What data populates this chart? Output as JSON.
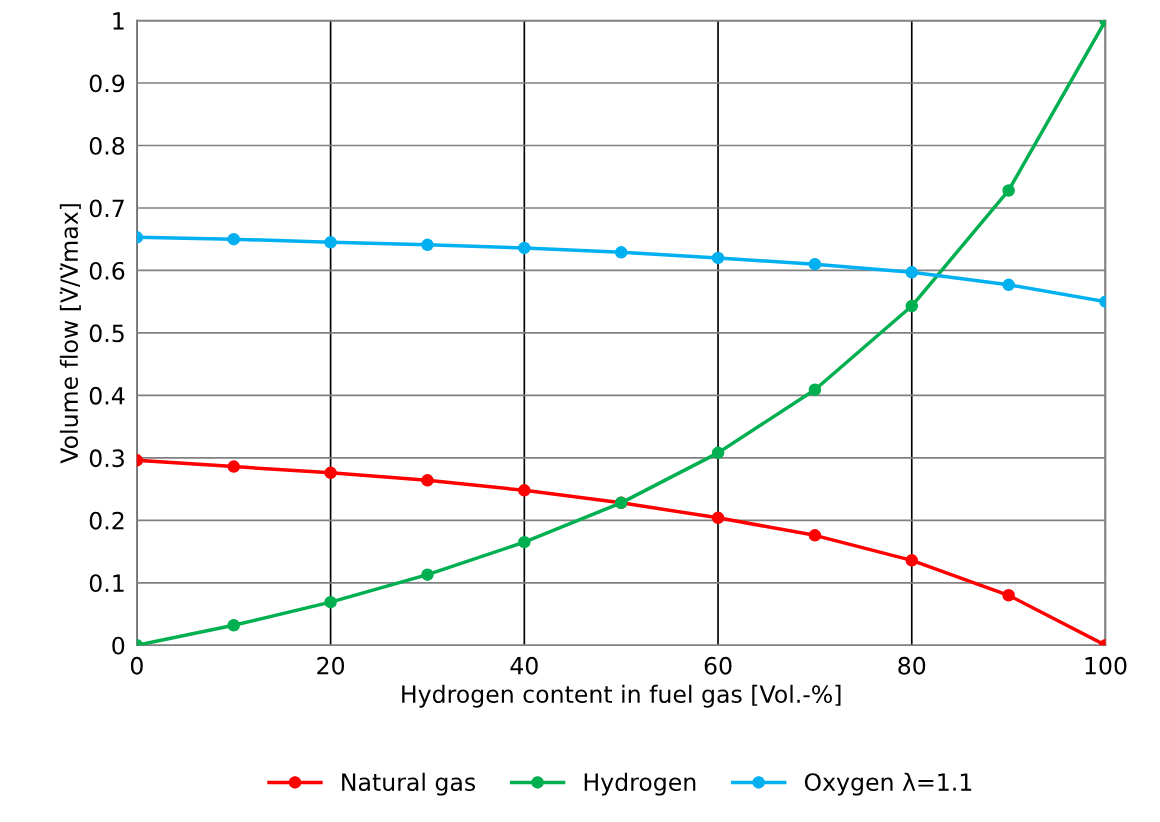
{
  "chart_data": {
    "type": "line",
    "xlabel": "Hydrogen content in fuel gas [Vol.-%]",
    "ylabel": "Volume flow [V̇/V̇max]",
    "x": [
      0,
      10,
      20,
      30,
      40,
      50,
      60,
      70,
      80,
      90,
      100
    ],
    "series": [
      {
        "name": "Natural gas",
        "color": "#ff0000",
        "values": [
          0.296,
          0.286,
          0.276,
          0.264,
          0.248,
          0.228,
          0.204,
          0.176,
          0.136,
          0.08,
          0
        ]
      },
      {
        "name": "Hydrogen",
        "color": "#00b050",
        "values": [
          0,
          0.032,
          0.069,
          0.113,
          0.165,
          0.228,
          0.308,
          0.409,
          0.543,
          0.728,
          1
        ]
      },
      {
        "name": "Oxygen λ=1.1",
        "color": "#00b0f0",
        "values": [
          0.653,
          0.65,
          0.645,
          0.641,
          0.636,
          0.629,
          0.62,
          0.61,
          0.597,
          0.577,
          0.55
        ]
      }
    ],
    "xlim": [
      0,
      100
    ],
    "xticks": [
      0,
      20,
      40,
      60,
      80,
      100
    ],
    "ylim": [
      0,
      1
    ],
    "yticks": [
      0,
      0.1,
      0.2,
      0.3,
      0.4,
      0.5,
      0.6,
      0.7,
      0.8,
      0.9,
      1
    ],
    "grid": true,
    "legend": "bottom",
    "marker": "circle",
    "line_style": "solid"
  }
}
